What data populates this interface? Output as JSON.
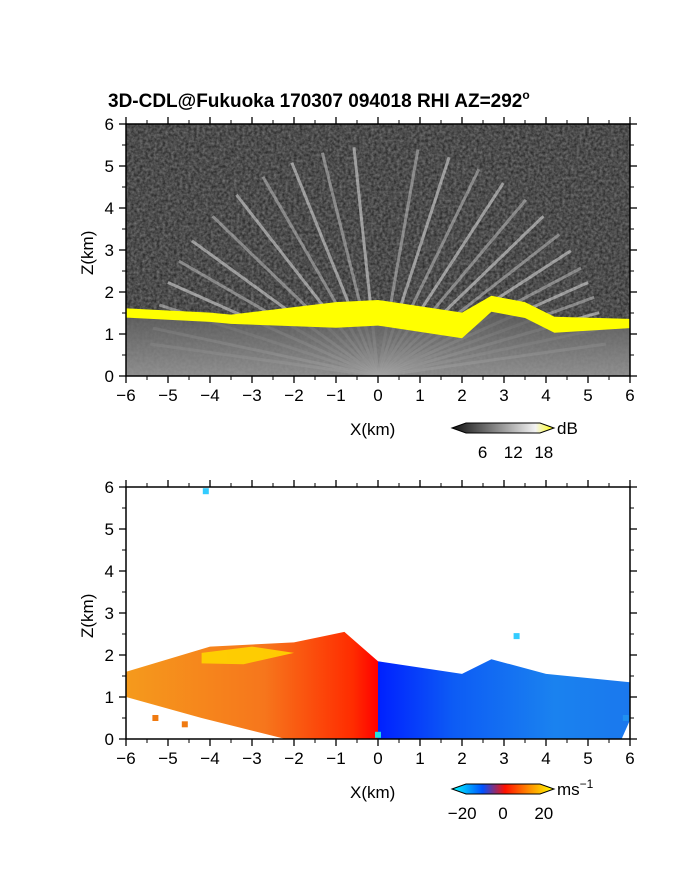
{
  "title": "3D-CDL@Fukuoka 170307 094018 RHI AZ=292",
  "title_superscript": "o",
  "chart_data": [
    {
      "type": "heatmap",
      "quantity": "backscatter intensity",
      "xlabel": "X(km)",
      "ylabel": "Z(km)",
      "xlim": [
        -6,
        6
      ],
      "ylim": [
        0,
        6
      ],
      "xticks": [
        "-6",
        "-5",
        "-4",
        "-3",
        "-2",
        "-1",
        "0",
        "1",
        "2",
        "3",
        "4",
        "5",
        "6"
      ],
      "yticks": [
        "0",
        "1",
        "2",
        "3",
        "4",
        "5",
        "6"
      ],
      "colorbar": {
        "unit": "dB",
        "ticks": [
          "6",
          "12",
          "18"
        ],
        "range": [
          0,
          20
        ],
        "colors": [
          "#000000",
          "#ffffff",
          "#ffff00"
        ]
      },
      "cloud_base_km": [
        {
          "x": -6.0,
          "z": 1.55
        },
        {
          "x": -5.0,
          "z": 1.5
        },
        {
          "x": -4.0,
          "z": 1.45
        },
        {
          "x": -3.5,
          "z": 1.4
        },
        {
          "x": -1.0,
          "z": 1.7
        },
        {
          "x": 0.0,
          "z": 1.75
        },
        {
          "x": 1.0,
          "z": 1.6
        },
        {
          "x": 2.0,
          "z": 1.45
        },
        {
          "x": 2.7,
          "z": 1.85
        },
        {
          "x": 3.5,
          "z": 1.7
        },
        {
          "x": 4.2,
          "z": 1.35
        },
        {
          "x": 6.0,
          "z": 1.3
        }
      ]
    },
    {
      "type": "heatmap",
      "quantity": "radial velocity",
      "xlabel": "X(km)",
      "ylabel": "Z(km)",
      "xlim": [
        -6,
        6
      ],
      "ylim": [
        0,
        6
      ],
      "xticks": [
        "-6",
        "-5",
        "-4",
        "-3",
        "-2",
        "-1",
        "0",
        "1",
        "2",
        "3",
        "4",
        "5",
        "6"
      ],
      "yticks": [
        "0",
        "1",
        "2",
        "3",
        "4",
        "5",
        "6"
      ],
      "colorbar": {
        "unit": "ms",
        "unit_superscript": "−1",
        "ticks": [
          "−20",
          "0",
          "20"
        ],
        "range": [
          -25,
          25
        ],
        "colors": [
          "#00ffff",
          "#0050ff",
          "#ff0000",
          "#ff8000",
          "#ffff00"
        ]
      },
      "velocity_field_ms": {
        "left_of_x0": 12,
        "right_of_x0": -14
      },
      "echo_top_km": [
        {
          "x": -6.0,
          "z": 1.6
        },
        {
          "x": -4.0,
          "z": 2.2
        },
        {
          "x": -2.0,
          "z": 2.3
        },
        {
          "x": -0.8,
          "z": 2.55
        },
        {
          "x": 0.0,
          "z": 1.85
        },
        {
          "x": 2.0,
          "z": 1.55
        },
        {
          "x": 2.7,
          "z": 1.9
        },
        {
          "x": 4.0,
          "z": 1.55
        },
        {
          "x": 6.0,
          "z": 1.35
        }
      ]
    }
  ]
}
